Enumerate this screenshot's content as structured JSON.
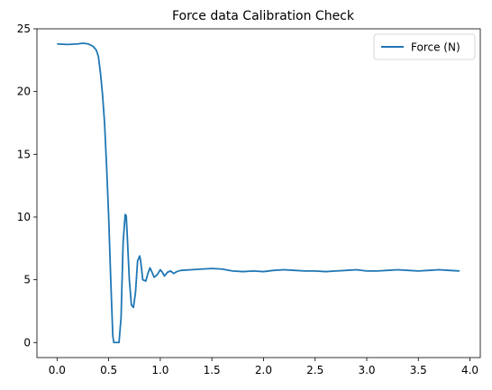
{
  "chart_data": {
    "type": "line",
    "title": "Force data Calibration Check",
    "xlabel": "",
    "ylabel": "",
    "xlim": [
      -0.195,
      4.1
    ],
    "ylim": [
      -1.2,
      25
    ],
    "xticks": [
      0.0,
      0.5,
      1.0,
      1.5,
      2.0,
      2.5,
      3.0,
      3.5,
      4.0
    ],
    "xtick_labels": [
      "0.0",
      "0.5",
      "1.0",
      "1.5",
      "2.0",
      "2.5",
      "3.0",
      "3.5",
      "4.0"
    ],
    "yticks": [
      0,
      5,
      10,
      15,
      20,
      25
    ],
    "ytick_labels": [
      "0",
      "5",
      "10",
      "15",
      "20",
      "25"
    ],
    "grid": false,
    "legend_position": "top-right",
    "series": [
      {
        "name": "Force (N)",
        "color": "#1f77b4",
        "x": [
          0.0,
          0.1,
          0.2,
          0.25,
          0.3,
          0.35,
          0.38,
          0.4,
          0.42,
          0.44,
          0.46,
          0.48,
          0.5,
          0.52,
          0.54,
          0.55,
          0.56,
          0.58,
          0.6,
          0.62,
          0.63,
          0.64,
          0.66,
          0.67,
          0.68,
          0.7,
          0.72,
          0.74,
          0.76,
          0.78,
          0.8,
          0.81,
          0.83,
          0.86,
          0.88,
          0.9,
          0.92,
          0.94,
          0.97,
          1.0,
          1.02,
          1.04,
          1.07,
          1.1,
          1.13,
          1.16,
          1.2,
          1.3,
          1.4,
          1.5,
          1.6,
          1.7,
          1.8,
          1.9,
          2.0,
          2.1,
          2.2,
          2.3,
          2.4,
          2.5,
          2.6,
          2.7,
          2.8,
          2.9,
          3.0,
          3.1,
          3.2,
          3.3,
          3.4,
          3.5,
          3.6,
          3.7,
          3.8,
          3.9
        ],
        "y": [
          23.8,
          23.75,
          23.8,
          23.85,
          23.8,
          23.6,
          23.3,
          22.8,
          21.5,
          19.8,
          17.5,
          14.0,
          10.0,
          5.0,
          0.5,
          0.0,
          0.0,
          0.0,
          0.0,
          2.0,
          5.0,
          8.0,
          10.2,
          10.1,
          8.5,
          5.0,
          3.0,
          2.8,
          4.0,
          6.5,
          6.9,
          6.5,
          5.0,
          4.9,
          5.5,
          5.95,
          5.6,
          5.2,
          5.4,
          5.8,
          5.6,
          5.3,
          5.6,
          5.7,
          5.5,
          5.65,
          5.75,
          5.8,
          5.85,
          5.9,
          5.85,
          5.7,
          5.65,
          5.7,
          5.65,
          5.75,
          5.8,
          5.75,
          5.7,
          5.7,
          5.65,
          5.7,
          5.75,
          5.8,
          5.7,
          5.7,
          5.75,
          5.8,
          5.75,
          5.7,
          5.75,
          5.8,
          5.75,
          5.7
        ]
      }
    ]
  }
}
